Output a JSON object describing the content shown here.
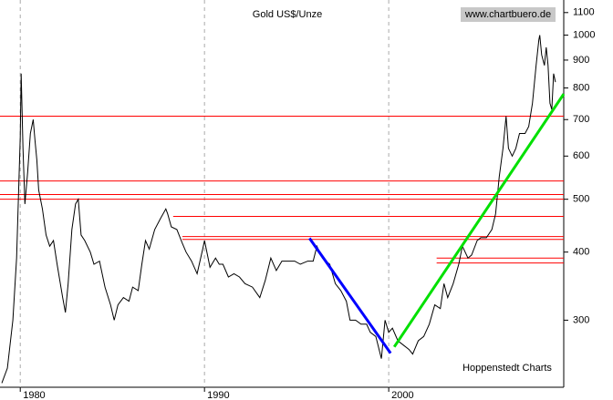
{
  "chart_data": {
    "type": "line",
    "title": "Gold US$/Unze",
    "source": "www.chartbuero.de",
    "credit": "Hoppenstedt Charts",
    "log_y": true,
    "xlim": [
      1978.9,
      2009.5
    ],
    "xticks": [
      1980,
      1990,
      2000
    ],
    "ylim": [
      226,
      1160
    ],
    "yticks": [
      300,
      400,
      500,
      600,
      700,
      800,
      900,
      1000,
      1100
    ],
    "grid": true,
    "x": [
      1979.0,
      1979.3,
      1979.6,
      1979.8,
      1980.0,
      1980.05,
      1980.15,
      1980.25,
      1980.4,
      1980.55,
      1980.7,
      1980.8,
      1980.9,
      1981.0,
      1981.2,
      1981.4,
      1981.6,
      1981.8,
      1982.0,
      1982.3,
      1982.45,
      1982.6,
      1982.8,
      1983.0,
      1983.15,
      1983.3,
      1983.5,
      1983.8,
      1984.0,
      1984.3,
      1984.6,
      1984.9,
      1985.1,
      1985.3,
      1985.6,
      1985.9,
      1986.1,
      1986.4,
      1986.6,
      1986.8,
      1987.0,
      1987.3,
      1987.6,
      1987.9,
      1988.0,
      1988.2,
      1988.5,
      1988.8,
      1989.0,
      1989.3,
      1989.6,
      1989.9,
      1990.0,
      1990.3,
      1990.6,
      1990.8,
      1991.0,
      1991.3,
      1991.6,
      1991.9,
      1992.2,
      1992.6,
      1993.0,
      1993.3,
      1993.6,
      1993.9,
      1994.2,
      1994.6,
      1994.9,
      1995.2,
      1995.6,
      1995.9,
      1996.1,
      1996.4,
      1996.8,
      1997.1,
      1997.4,
      1997.7,
      1997.9,
      1998.2,
      1998.5,
      1998.8,
      1999.0,
      1999.3,
      1999.6,
      1999.8,
      2000.0,
      2000.2,
      2000.5,
      2000.8,
      2001.1,
      2001.3,
      2001.6,
      2001.9,
      2002.2,
      2002.5,
      2002.8,
      2003.0,
      2003.2,
      2003.5,
      2003.8,
      2004.0,
      2004.3,
      2004.5,
      2004.8,
      2005.0,
      2005.3,
      2005.6,
      2005.8,
      2006.0,
      2006.2,
      2006.37,
      2006.5,
      2006.7,
      2006.9,
      2007.1,
      2007.4,
      2007.6,
      2007.8,
      2008.0,
      2008.15,
      2008.2,
      2008.3,
      2008.45,
      2008.55,
      2008.65,
      2008.75,
      2008.85,
      2008.95,
      2009.05
    ],
    "series": [
      {
        "color": "#000000",
        "values": [
          230,
          245,
          300,
          390,
          650,
          850,
          620,
          490,
          560,
          660,
          700,
          640,
          590,
          520,
          480,
          430,
          410,
          420,
          380,
          330,
          310,
          350,
          440,
          490,
          500,
          430,
          420,
          400,
          380,
          385,
          345,
          320,
          300,
          320,
          330,
          325,
          345,
          340,
          380,
          420,
          405,
          440,
          460,
          480,
          470,
          445,
          440,
          415,
          400,
          385,
          365,
          405,
          420,
          375,
          390,
          380,
          380,
          360,
          365,
          360,
          350,
          345,
          330,
          355,
          390,
          370,
          385,
          385,
          385,
          380,
          385,
          385,
          410,
          390,
          380,
          350,
          340,
          325,
          300,
          300,
          295,
          295,
          285,
          280,
          255,
          300,
          285,
          290,
          275,
          270,
          265,
          260,
          275,
          280,
          295,
          320,
          315,
          350,
          330,
          350,
          380,
          410,
          390,
          395,
          420,
          425,
          425,
          440,
          470,
          550,
          620,
          710,
          620,
          600,
          620,
          660,
          660,
          680,
          750,
          880,
          980,
          1000,
          920,
          880,
          950,
          880,
          750,
          730,
          850,
          820
        ]
      }
    ],
    "hlines": {
      "color": "#ff0000",
      "lines": [
        {
          "value": 710
        },
        {
          "value": 540
        },
        {
          "value": 510
        },
        {
          "value": 500
        },
        {
          "value": 465,
          "from": 1988.3
        },
        {
          "value": 427,
          "from": 1988.8
        },
        {
          "value": 422,
          "from": 1988.8
        },
        {
          "value": 390,
          "from": 2002.6
        },
        {
          "value": 382,
          "from": 2002.6
        }
      ]
    },
    "trendlines": [
      {
        "color": "#0000ff",
        "x": [
          1995.7,
          2000.1
        ],
        "values": [
          424,
          261
        ]
      },
      {
        "color": "#00e000",
        "x": [
          2000.3,
          2009.5
        ],
        "values": [
          268,
          780
        ]
      }
    ]
  }
}
